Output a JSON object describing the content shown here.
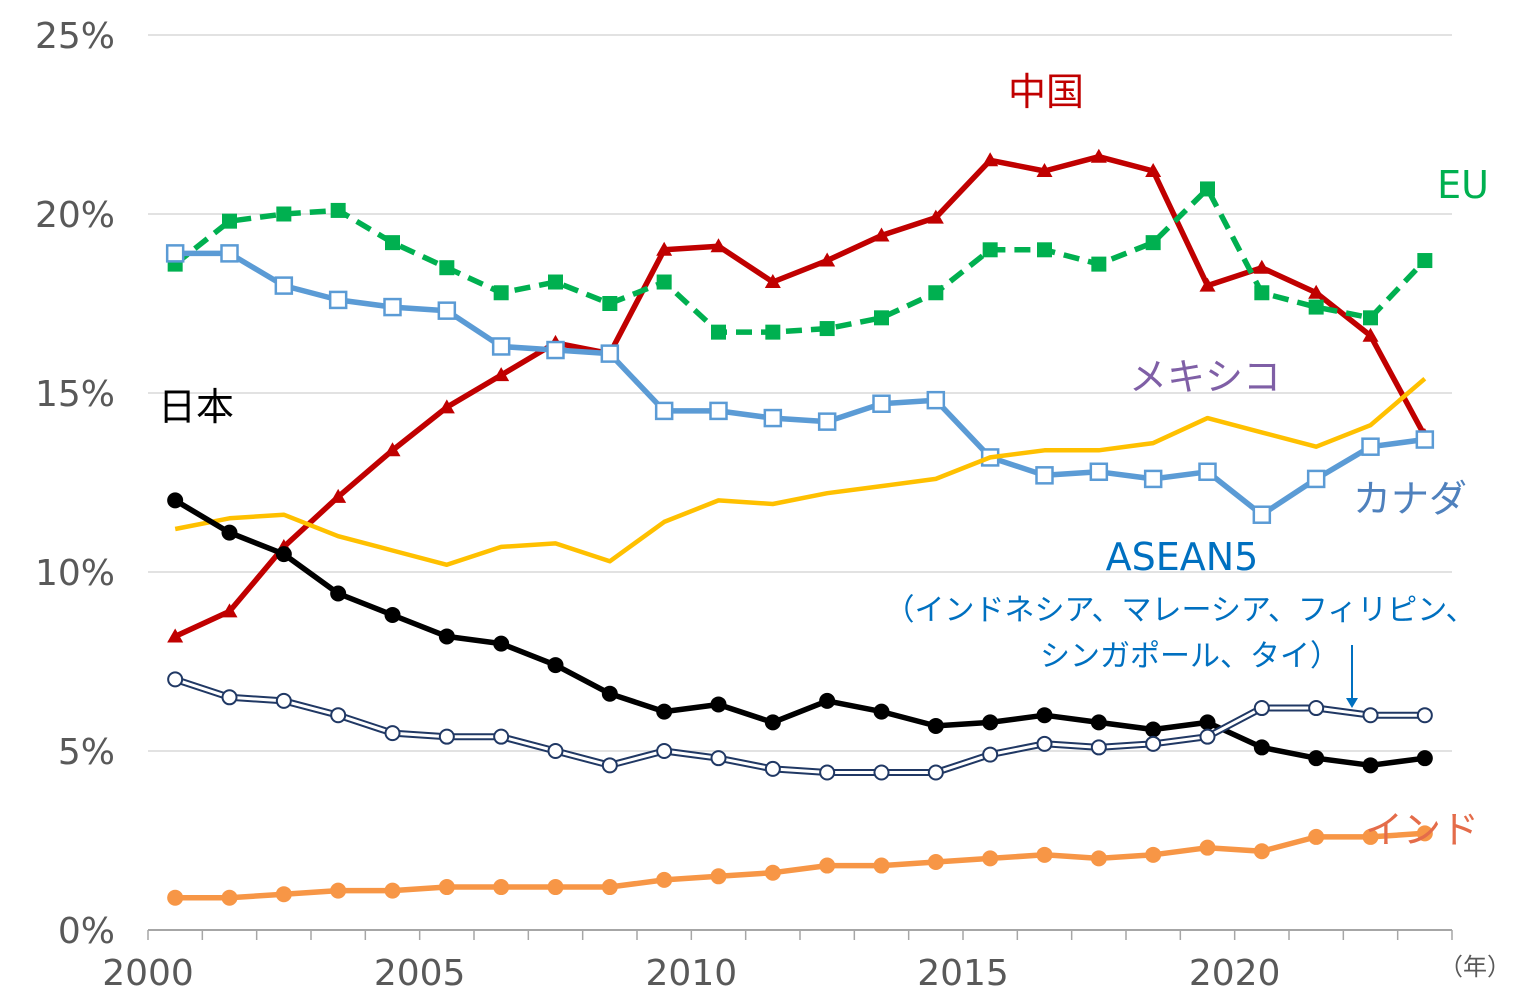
{
  "chart_data": {
    "type": "line",
    "x": [
      2000,
      2001,
      2002,
      2003,
      2004,
      2005,
      2006,
      2007,
      2008,
      2009,
      2010,
      2011,
      2012,
      2013,
      2014,
      2015,
      2016,
      2017,
      2018,
      2019,
      2020,
      2021,
      2022,
      2023
    ],
    "ylim": [
      0,
      25
    ],
    "yticks": [
      "0%",
      "5%",
      "10%",
      "15%",
      "20%",
      "25%"
    ],
    "xticks": [
      "2000",
      "2005",
      "2010",
      "2015",
      "2020"
    ],
    "x_unit": "（年）",
    "grid": true,
    "series": [
      {
        "name": "中国",
        "color": "#c00000",
        "marker": "triangle",
        "dash": false,
        "values": [
          8.2,
          8.9,
          10.7,
          12.1,
          13.4,
          14.6,
          15.5,
          16.4,
          16.1,
          19.0,
          19.1,
          18.1,
          18.7,
          19.4,
          19.9,
          21.5,
          21.2,
          21.6,
          21.2,
          18.0,
          18.5,
          17.8,
          16.6,
          13.8
        ]
      },
      {
        "name": "EU",
        "color": "#00b050",
        "marker": "square-filled",
        "dash": true,
        "values": [
          18.6,
          19.8,
          20.0,
          20.1,
          19.2,
          18.5,
          17.8,
          18.1,
          17.5,
          18.1,
          16.7,
          16.7,
          16.8,
          17.1,
          17.8,
          19.0,
          19.0,
          18.6,
          19.2,
          20.7,
          17.8,
          17.4,
          17.1,
          18.7
        ]
      },
      {
        "name": "カナダ",
        "color": "#5b9bd5",
        "marker": "square-open",
        "dash": false,
        "values": [
          18.9,
          18.9,
          18.0,
          17.6,
          17.4,
          17.3,
          16.3,
          16.2,
          16.1,
          14.5,
          14.5,
          14.3,
          14.2,
          14.7,
          14.8,
          13.2,
          12.7,
          12.8,
          12.6,
          12.8,
          11.6,
          12.6,
          13.5,
          13.7
        ]
      },
      {
        "name": "メキシコ",
        "color": "#ffc000",
        "marker": "none",
        "dash": false,
        "values": [
          11.2,
          11.5,
          11.6,
          11.0,
          10.6,
          10.2,
          10.7,
          10.8,
          10.3,
          11.4,
          12.0,
          11.9,
          12.2,
          12.4,
          12.6,
          13.2,
          13.4,
          13.4,
          13.6,
          14.3,
          13.9,
          13.5,
          14.1,
          15.4
        ]
      },
      {
        "name": "日本",
        "color": "#000000",
        "marker": "circle-filled",
        "dash": false,
        "values": [
          12.0,
          11.1,
          10.5,
          9.4,
          8.8,
          8.2,
          8.0,
          7.4,
          6.6,
          6.1,
          6.3,
          5.8,
          6.4,
          6.1,
          5.7,
          5.8,
          6.0,
          5.8,
          5.6,
          5.8,
          5.1,
          4.8,
          4.6,
          4.8
        ]
      },
      {
        "name": "ASEAN5",
        "color": "#203864",
        "marker": "circle-open",
        "dash": false,
        "values": [
          7.0,
          6.5,
          6.4,
          6.0,
          5.5,
          5.4,
          5.4,
          5.0,
          4.6,
          5.0,
          4.8,
          4.5,
          4.4,
          4.4,
          4.4,
          4.9,
          5.2,
          5.1,
          5.2,
          5.4,
          6.2,
          6.2,
          6.0,
          6.0
        ]
      },
      {
        "name": "インド",
        "color": "#f79646",
        "marker": "circle-filled",
        "dash": false,
        "values": [
          0.9,
          0.9,
          1.0,
          1.1,
          1.1,
          1.2,
          1.2,
          1.2,
          1.2,
          1.4,
          1.5,
          1.6,
          1.8,
          1.8,
          1.9,
          2.0,
          2.1,
          2.0,
          2.1,
          2.3,
          2.2,
          2.6,
          2.6,
          2.7
        ]
      }
    ],
    "labels": {
      "china": "中国",
      "eu": "EU",
      "mexico": "メキシコ",
      "japan": "日本",
      "canada": "カナダ",
      "asean": "ASEAN5",
      "asean_note_1": "（インドネシア、マレーシア、フィリピン、",
      "asean_note_2": "シンガポール、タイ）",
      "india": "インド"
    },
    "label_colors": {
      "china": "#c00000",
      "eu": "#00b050",
      "mexico": "#7f5fa6",
      "japan": "#000000",
      "canada": "#4f81bd",
      "asean": "#0070c0",
      "india": "#e46c4a"
    }
  }
}
